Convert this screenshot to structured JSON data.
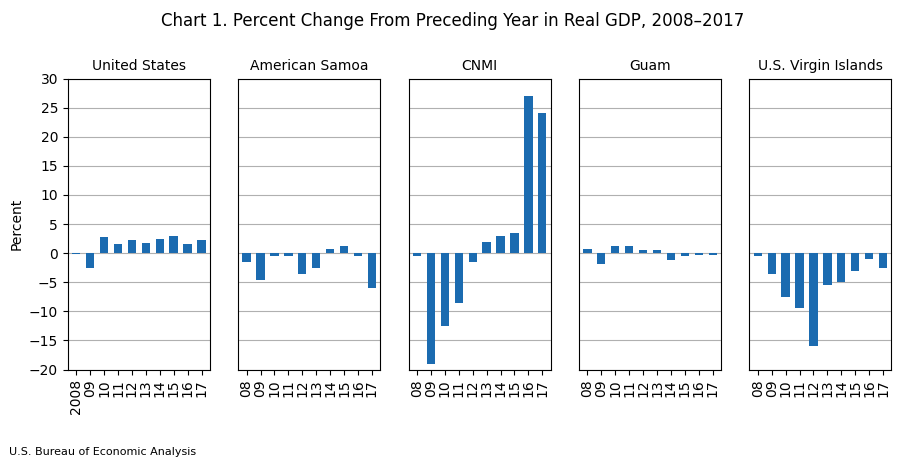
{
  "title": "Chart 1. Percent Change From Preceding Year in Real GDP, 2008–2017",
  "annotations": [
    "U.S. Bureau of Economic Analysis"
  ],
  "chart_data": [
    {
      "type": "bar",
      "title": "United States",
      "ylabel": "Percent",
      "categories": [
        "2008",
        "09",
        "10",
        "11",
        "12",
        "13",
        "14",
        "15",
        "16",
        "17"
      ],
      "values": [
        -0.1,
        -2.6,
        2.7,
        1.6,
        2.3,
        1.8,
        2.5,
        2.9,
        1.6,
        2.2
      ],
      "color": "#1B6BB0",
      "ylim": [
        -20,
        30
      ],
      "yticks": [
        {
          "value": -20,
          "label": "−20"
        },
        {
          "value": -15,
          "label": "−15"
        },
        {
          "value": -10,
          "label": "−10"
        },
        {
          "value": -5,
          "label": "−5"
        },
        0,
        5,
        10,
        15,
        20,
        25,
        30
      ],
      "grid": true
    },
    {
      "type": "bar",
      "title": "American Samoa",
      "categories": [
        "08",
        "09",
        "10",
        "11",
        "12",
        "13",
        "14",
        "15",
        "16",
        "17"
      ],
      "values": [
        -1.5,
        -4.6,
        -0.5,
        -0.5,
        -3.5,
        -2.5,
        0.8,
        1.3,
        -0.5,
        -6.0
      ],
      "color": "#1B6BB0",
      "ylim": [
        -20,
        30
      ],
      "yticks": [
        -20,
        -15,
        -10,
        -5,
        0,
        5,
        10,
        15,
        20,
        25,
        30
      ],
      "grid": true,
      "tick_labels": "x"
    },
    {
      "type": "bar",
      "title": "CNMI",
      "categories": [
        "08",
        "09",
        "10",
        "11",
        "12",
        "13",
        "14",
        "15",
        "16",
        "17"
      ],
      "values": [
        -0.5,
        -19.0,
        -12.5,
        -8.5,
        -1.5,
        2.0,
        3.0,
        3.5,
        27.0,
        24.0
      ],
      "color": "#1B6BB0",
      "ylim": [
        -20,
        30
      ],
      "yticks": [
        -20,
        -15,
        -10,
        -5,
        0,
        5,
        10,
        15,
        20,
        25,
        30
      ],
      "grid": true,
      "tick_labels": "x"
    },
    {
      "type": "bar",
      "title": "Guam",
      "categories": [
        "08",
        "09",
        "10",
        "11",
        "12",
        "13",
        "14",
        "15",
        "16",
        "17"
      ],
      "values": [
        0.7,
        -1.8,
        1.2,
        1.2,
        0.5,
        0.5,
        -1.2,
        -0.5,
        -0.3,
        -0.3
      ],
      "color": "#1B6BB0",
      "ylim": [
        -20,
        30
      ],
      "yticks": [
        -20,
        -15,
        -10,
        -5,
        0,
        5,
        10,
        15,
        20,
        25,
        30
      ],
      "grid": true,
      "tick_labels": "x"
    },
    {
      "type": "bar",
      "title": "U.S. Virgin Islands",
      "categories": [
        "08",
        "09",
        "10",
        "11",
        "12",
        "13",
        "14",
        "15",
        "16",
        "17"
      ],
      "values": [
        -0.5,
        -3.5,
        -7.5,
        -9.5,
        -16.0,
        -5.5,
        -5.0,
        -3.0,
        -1.0,
        -2.5
      ],
      "color": "#1B6BB0",
      "ylim": [
        -20,
        30
      ],
      "yticks": [
        -20,
        -15,
        -10,
        -5,
        0,
        5,
        10,
        15,
        20,
        25,
        30
      ],
      "grid": true,
      "tick_labels": "x"
    }
  ]
}
